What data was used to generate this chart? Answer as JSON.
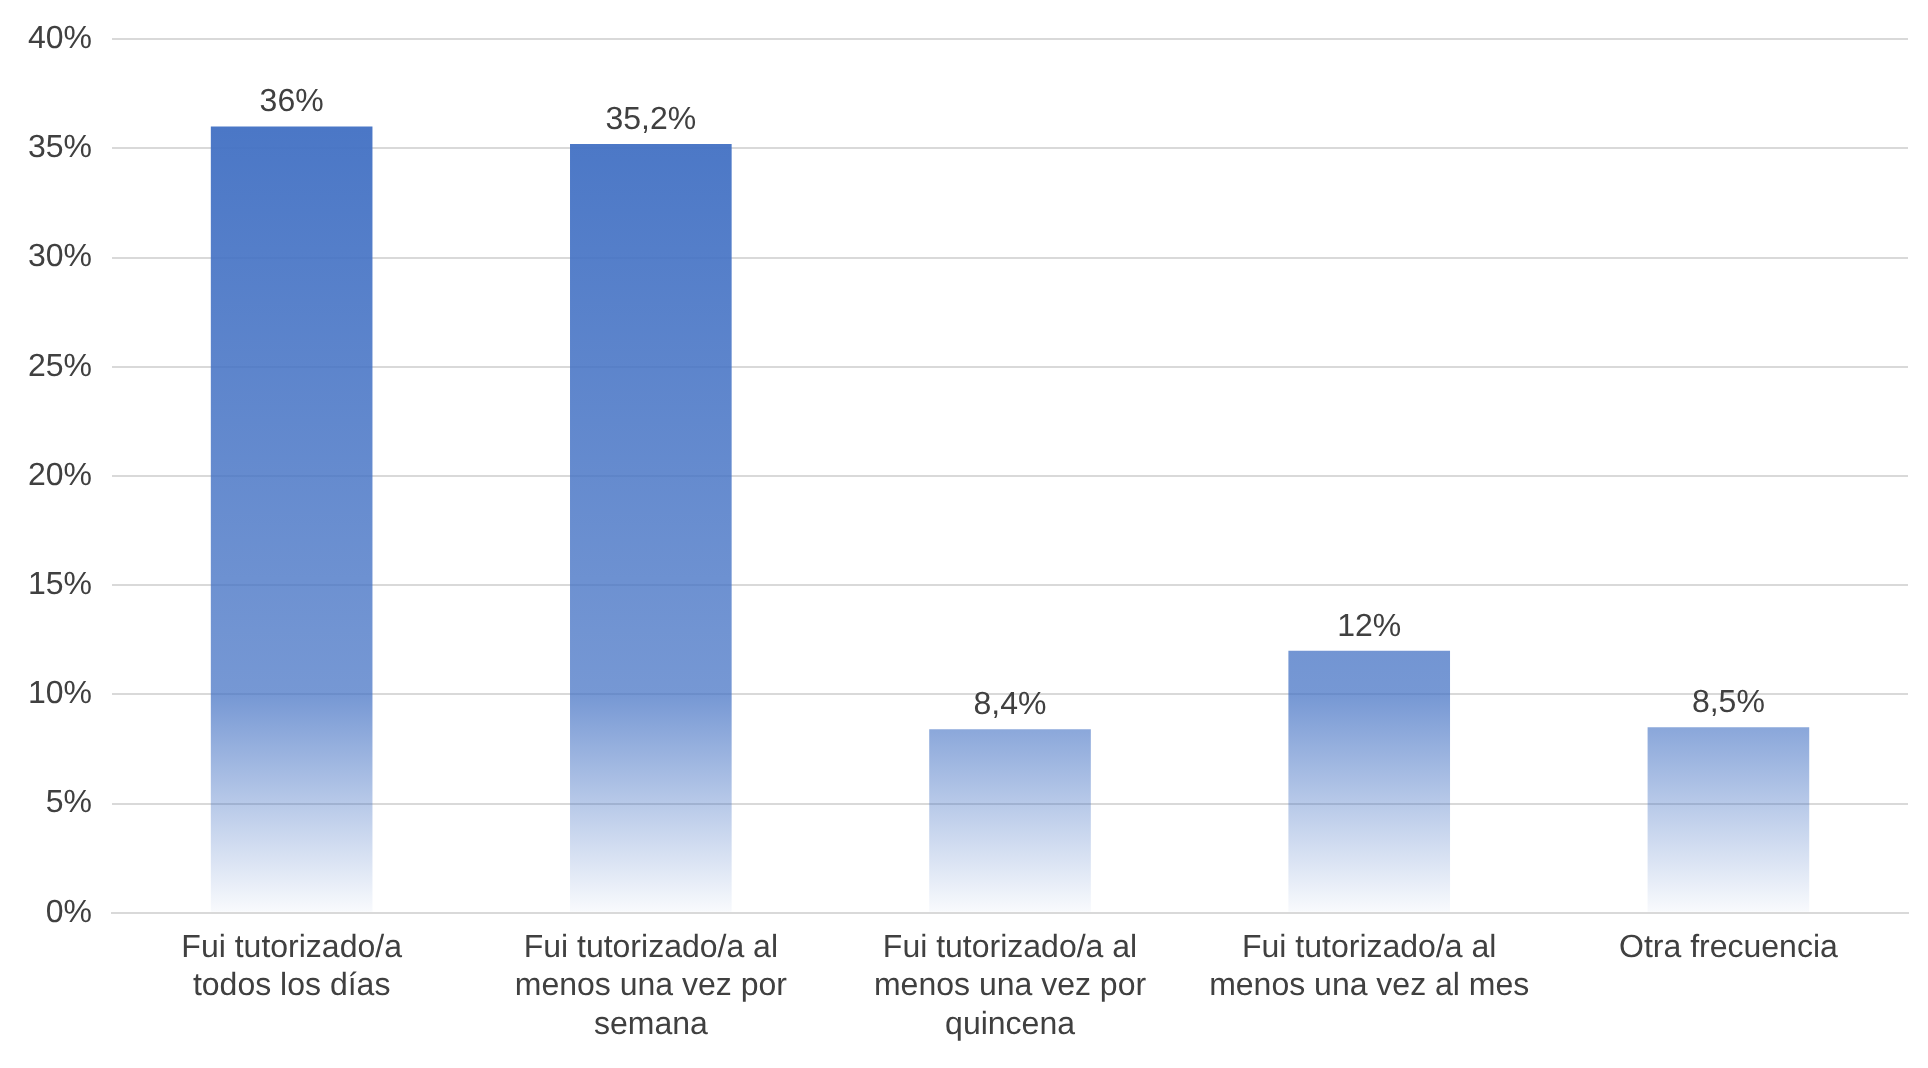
{
  "chart_data": {
    "type": "bar",
    "categories": [
      "Fui tutorizado/a todos los días",
      "Fui tutorizado/a al menos una vez por semana",
      "Fui tutorizado/a al menos una vez por quincena",
      "Fui tutorizado/a al menos una vez al mes",
      "Otra frecuencia"
    ],
    "values": [
      36,
      35.2,
      8.4,
      12,
      8.5
    ],
    "value_labels": [
      "36%",
      "35,2%",
      "8,4%",
      "12%",
      "8,5%"
    ],
    "color": "#4472c4",
    "ylim": [
      0,
      40
    ],
    "yticks": [
      {
        "value": 0,
        "label": "0%"
      },
      {
        "value": 5,
        "label": "5%"
      },
      {
        "value": 10,
        "label": "10%"
      },
      {
        "value": 15,
        "label": "15%"
      },
      {
        "value": 20,
        "label": "20%"
      },
      {
        "value": 25,
        "label": "25%"
      },
      {
        "value": 30,
        "label": "30%"
      },
      {
        "value": 35,
        "label": "35%"
      },
      {
        "value": 40,
        "label": "40%"
      }
    ],
    "grid": "y"
  }
}
